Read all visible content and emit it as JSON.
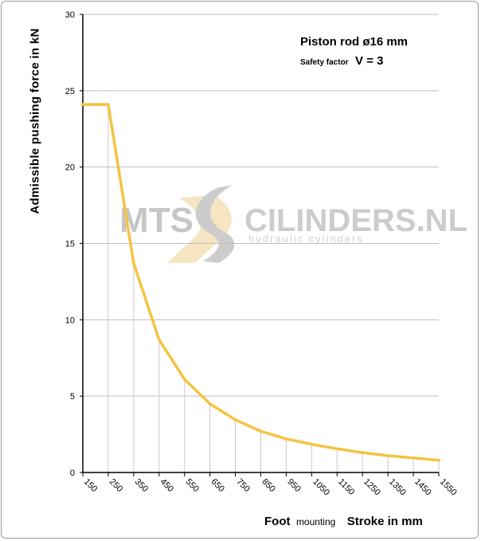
{
  "chart_data": {
    "type": "line",
    "ylabel": "Admissible  pushing  force in kN",
    "annotation_title": "Piston rod ø16 mm",
    "safety_factor_label": "Safety factor",
    "safety_factor_value": "V = 3",
    "xlabel_foot": "Foot",
    "xlabel_mounting": "mounting",
    "xlabel_stroke": "Stroke in mm",
    "watermark": {
      "brand_left": "MTS",
      "brand_right": "CILINDERS.NL",
      "tagline": "hydraulic cylinders"
    },
    "categories": [
      "150",
      "250",
      "350",
      "450",
      "550",
      "650",
      "750",
      "850",
      "950",
      "1050",
      "1150",
      "1250",
      "1350",
      "1450",
      "1550"
    ],
    "yticks": [
      "0",
      "5",
      "10",
      "15",
      "20",
      "25",
      "30"
    ],
    "ylim": [
      0,
      30
    ],
    "grid": "horizontal",
    "series": [
      {
        "values": [
          24.1,
          24.1,
          13.7,
          8.7,
          6.1,
          4.5,
          3.45,
          2.7,
          2.2,
          1.85,
          1.55,
          1.3,
          1.1,
          0.95,
          0.8
        ],
        "color": "#f5c342"
      }
    ],
    "colors": {
      "series": "#f5c342",
      "grid": "#bdbdbd",
      "axis": "#000000",
      "drop_lines": "#c8c8c8",
      "watermark_text": "#b8b8b8",
      "watermark_accent": "#f3d9a8"
    }
  }
}
